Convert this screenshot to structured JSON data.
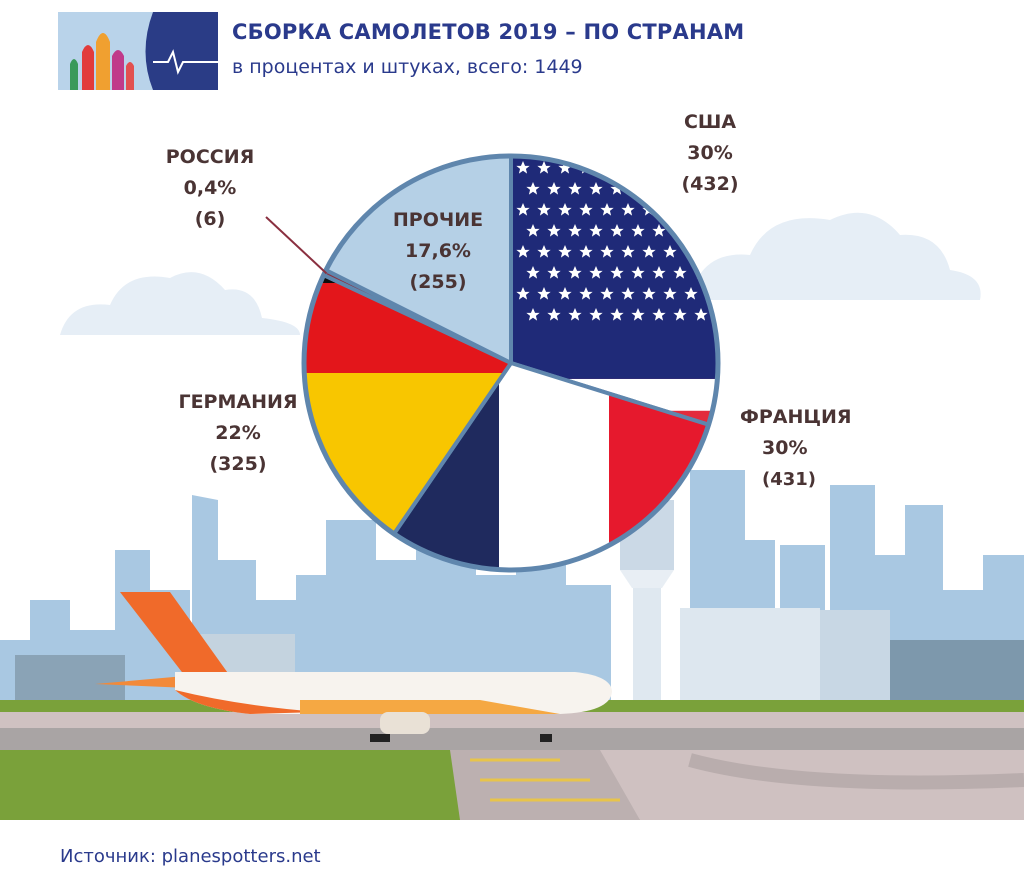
{
  "header": {
    "title": "СБОРКА САМОЛЕТОВ 2019 – ПО СТРАНАМ",
    "subtitle": "в процентах и штуках, всего: 1449"
  },
  "chart_data": {
    "type": "pie",
    "title": "СБОРКА САМОЛЕТОВ 2019 – ПО СТРАНАМ",
    "subtitle": "в процентах и штуках, всего: 1449",
    "total": 1449,
    "slices": [
      {
        "name": "США",
        "percent_label": "30%",
        "count_label": "(432)",
        "value": 432,
        "fill": "usa-flag"
      },
      {
        "name": "ФРАНЦИЯ",
        "percent_label": "30%",
        "count_label": "(431)",
        "value": 431,
        "fill": "france-flag"
      },
      {
        "name": "ГЕРМАНИЯ",
        "percent_label": "22%",
        "count_label": "(325)",
        "value": 325,
        "fill": "germany-flag"
      },
      {
        "name": "РОССИЯ",
        "percent_label": "0,4%",
        "count_label": "(6)",
        "value": 6,
        "fill": "russia"
      },
      {
        "name": "ПРОЧИЕ",
        "percent_label": "17,6%",
        "count_label": "(255)",
        "value": 255,
        "fill": "other"
      }
    ]
  },
  "colors": {
    "title": "#2a3a8c",
    "label": "#4a3434",
    "usa_blue": "#1f2a78",
    "usa_red": "#e32b3c",
    "france_blue": "#1f2a5e",
    "france_red": "#e6192d",
    "germany_black": "#0b0b0b",
    "germany_red": "#e3161b",
    "germany_gold": "#f8c600",
    "other": "#b5d0e6",
    "russia": "#8a3040",
    "pie_border": "#5f86ad",
    "sky_city": "#a9c8e2"
  },
  "footer": {
    "source": "Источник: planespotters.net"
  }
}
